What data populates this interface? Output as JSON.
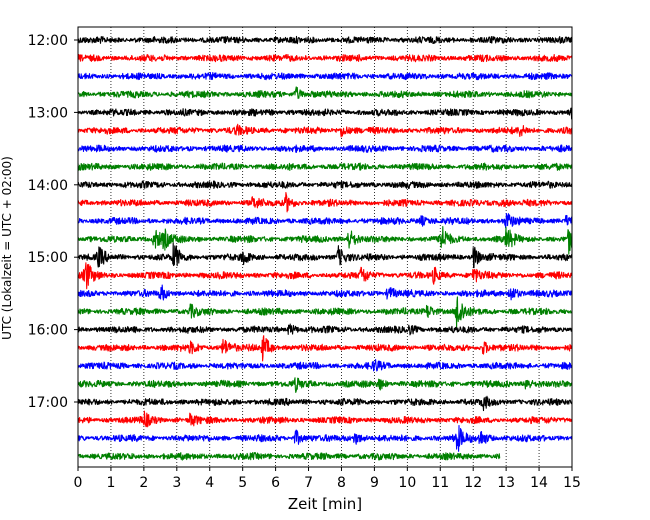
{
  "chart_data": {
    "type": "line",
    "title": "",
    "xlabel": "Zeit  [min]",
    "ylabel": "UTC (Lokalzeit = UTC + 02:00)",
    "xlim": [
      0,
      15
    ],
    "x_ticks": [
      0,
      1,
      2,
      3,
      4,
      5,
      6,
      7,
      8,
      9,
      10,
      11,
      12,
      13,
      14,
      15
    ],
    "y_tick_labels": [
      "12:00",
      "13:00",
      "14:00",
      "15:00",
      "16:00",
      "17:00"
    ],
    "grid": "vertical dotted lines at each minute",
    "colors": {
      "black": "#000000",
      "red": "#ff0000",
      "blue": "#0000ff",
      "green": "#008000"
    },
    "series": [
      {
        "start": "12:00",
        "color": "black",
        "end_min": 15,
        "events": []
      },
      {
        "start": "12:15",
        "color": "red",
        "end_min": 15,
        "events": []
      },
      {
        "start": "12:30",
        "color": "blue",
        "end_min": 15,
        "events": []
      },
      {
        "start": "12:45",
        "color": "green",
        "end_min": 15,
        "events": [
          {
            "t": 6.6,
            "amp": 6
          }
        ]
      },
      {
        "start": "13:00",
        "color": "black",
        "end_min": 15,
        "events": [
          {
            "t": 15.0,
            "amp": 6
          }
        ]
      },
      {
        "start": "13:15",
        "color": "red",
        "end_min": 15,
        "events": [
          {
            "t": 8.0,
            "amp": 6
          },
          {
            "t": 13.4,
            "amp": 5
          },
          {
            "t": 4.8,
            "amp": 4
          }
        ]
      },
      {
        "start": "13:30",
        "color": "blue",
        "end_min": 15,
        "events": []
      },
      {
        "start": "13:45",
        "color": "green",
        "end_min": 15,
        "events": []
      },
      {
        "start": "14:00",
        "color": "black",
        "end_min": 15,
        "events": []
      },
      {
        "start": "14:15",
        "color": "red",
        "end_min": 15,
        "events": [
          {
            "t": 6.3,
            "amp": 9
          },
          {
            "t": 5.3,
            "amp": 5
          },
          {
            "t": 12.8,
            "amp": 4
          }
        ]
      },
      {
        "start": "14:30",
        "color": "blue",
        "end_min": 15,
        "events": [
          {
            "t": 13.0,
            "amp": 8
          },
          {
            "t": 10.4,
            "amp": 5
          },
          {
            "t": 14.8,
            "amp": 5
          }
        ]
      },
      {
        "start": "14:45",
        "color": "green",
        "end_min": 15,
        "events": [
          {
            "t": 2.3,
            "amp": 11
          },
          {
            "t": 8.2,
            "amp": 11
          },
          {
            "t": 11.0,
            "amp": 14
          },
          {
            "t": 13.0,
            "amp": 11
          },
          {
            "t": 14.9,
            "amp": 12
          },
          {
            "t": 2.6,
            "amp": 8
          }
        ]
      },
      {
        "start": "15:00",
        "color": "black",
        "end_min": 15,
        "events": [
          {
            "t": 2.9,
            "amp": 13
          },
          {
            "t": 0.6,
            "amp": 9
          },
          {
            "t": 7.9,
            "amp": 10
          },
          {
            "t": 12.0,
            "amp": 10
          },
          {
            "t": 5.0,
            "amp": 6
          }
        ]
      },
      {
        "start": "15:15",
        "color": "red",
        "end_min": 15,
        "events": [
          {
            "t": 0.2,
            "amp": 16
          },
          {
            "t": 8.6,
            "amp": 7
          },
          {
            "t": 10.8,
            "amp": 6
          },
          {
            "t": 12.0,
            "amp": 7
          }
        ]
      },
      {
        "start": "15:30",
        "color": "blue",
        "end_min": 15,
        "events": [
          {
            "t": 2.5,
            "amp": 7
          },
          {
            "t": 13.1,
            "amp": 8
          },
          {
            "t": 9.4,
            "amp": 6
          }
        ]
      },
      {
        "start": "15:45",
        "color": "green",
        "end_min": 15,
        "events": [
          {
            "t": 11.5,
            "amp": 18
          },
          {
            "t": 10.6,
            "amp": 7
          },
          {
            "t": 3.4,
            "amp": 5
          }
        ]
      },
      {
        "start": "16:00",
        "color": "black",
        "end_min": 15,
        "events": [
          {
            "t": 6.4,
            "amp": 5
          },
          {
            "t": 10.0,
            "amp": 5
          }
        ]
      },
      {
        "start": "16:15",
        "color": "red",
        "end_min": 15,
        "events": [
          {
            "t": 5.6,
            "amp": 12
          },
          {
            "t": 4.4,
            "amp": 9
          },
          {
            "t": 3.4,
            "amp": 5
          },
          {
            "t": 12.3,
            "amp": 6
          }
        ]
      },
      {
        "start": "16:30",
        "color": "blue",
        "end_min": 15,
        "events": [
          {
            "t": 9.0,
            "amp": 5
          }
        ]
      },
      {
        "start": "16:45",
        "color": "green",
        "end_min": 15,
        "events": [
          {
            "t": 13.6,
            "amp": 6
          },
          {
            "t": 6.6,
            "amp": 5
          },
          {
            "t": 9.1,
            "amp": 5
          }
        ]
      },
      {
        "start": "17:00",
        "color": "black",
        "end_min": 15,
        "events": [
          {
            "t": 12.3,
            "amp": 5
          }
        ]
      },
      {
        "start": "17:15",
        "color": "red",
        "end_min": 15,
        "events": [
          {
            "t": 2.0,
            "amp": 7
          },
          {
            "t": 3.4,
            "amp": 5
          }
        ]
      },
      {
        "start": "17:30",
        "color": "blue",
        "end_min": 15,
        "events": [
          {
            "t": 11.5,
            "amp": 13
          },
          {
            "t": 12.2,
            "amp": 8
          },
          {
            "t": 6.6,
            "amp": 7
          },
          {
            "t": 8.4,
            "amp": 6
          }
        ]
      },
      {
        "start": "17:45",
        "color": "green",
        "end_min": 12.8,
        "events": []
      }
    ]
  }
}
